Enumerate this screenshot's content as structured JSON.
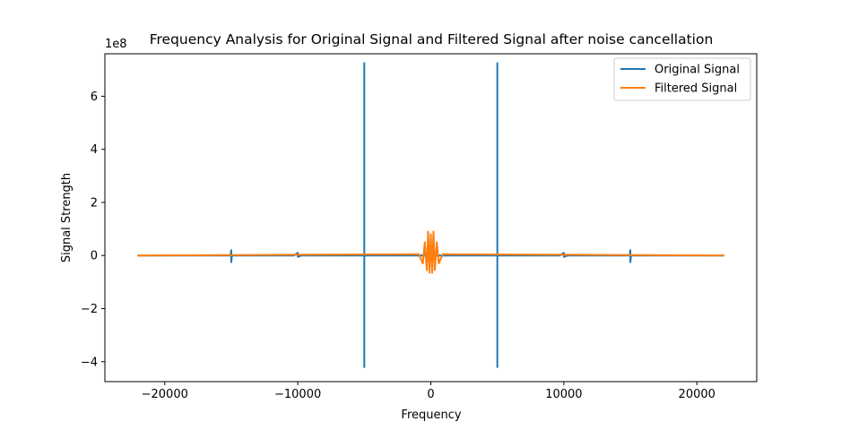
{
  "chart_data": {
    "type": "line",
    "title": "Frequency Analysis for Original Signal and Filtered Signal after noise cancellation",
    "xlabel": "Frequency",
    "ylabel": "Signal Strength",
    "y_offset_label": "1e8",
    "xlim": [
      -24500,
      24500
    ],
    "ylim": [
      -4.75,
      7.6
    ],
    "y_scale": 100000000,
    "x_ticks": [
      -20000,
      -10000,
      0,
      10000,
      20000
    ],
    "x_tick_labels": [
      "−20000",
      "−10000",
      "0",
      "10000",
      "20000"
    ],
    "y_ticks": [
      -4,
      -2,
      0,
      2,
      4,
      6
    ],
    "y_tick_labels": [
      "−4",
      "−2",
      "0",
      "2",
      "4",
      "6"
    ],
    "grid": false,
    "legend_position": "top-right",
    "series": [
      {
        "name": "Original Signal",
        "color": "#1f77b4",
        "x": [
          -22050,
          -15050,
          -15000,
          -15000,
          -14950,
          -10300,
          -10000,
          -10000,
          -9700,
          -5000,
          -5000,
          -5000,
          -5000,
          -4950,
          4950,
          5000,
          5000,
          5000,
          5000,
          9700,
          10000,
          10000,
          10300,
          14950,
          15000,
          15000,
          15050,
          22050
        ],
        "values": [
          0,
          0,
          0.2,
          -0.25,
          0,
          0,
          0.1,
          -0.05,
          0,
          0,
          7.25,
          -4.2,
          0,
          0,
          0,
          0,
          7.25,
          -4.2,
          0,
          0,
          0.1,
          -0.05,
          0,
          0,
          0.2,
          -0.25,
          0,
          0
        ]
      },
      {
        "name": "Filtered Signal",
        "color": "#ff7f0e",
        "x": [
          -22050,
          -900,
          -600,
          -450,
          -300,
          -200,
          -100,
          0,
          100,
          200,
          300,
          450,
          600,
          900,
          22050
        ],
        "values": [
          0,
          0.05,
          -0.3,
          0.5,
          -0.55,
          0.9,
          -0.65,
          0.8,
          -0.65,
          0.9,
          -0.55,
          0.5,
          -0.3,
          0.05,
          0
        ]
      }
    ]
  }
}
